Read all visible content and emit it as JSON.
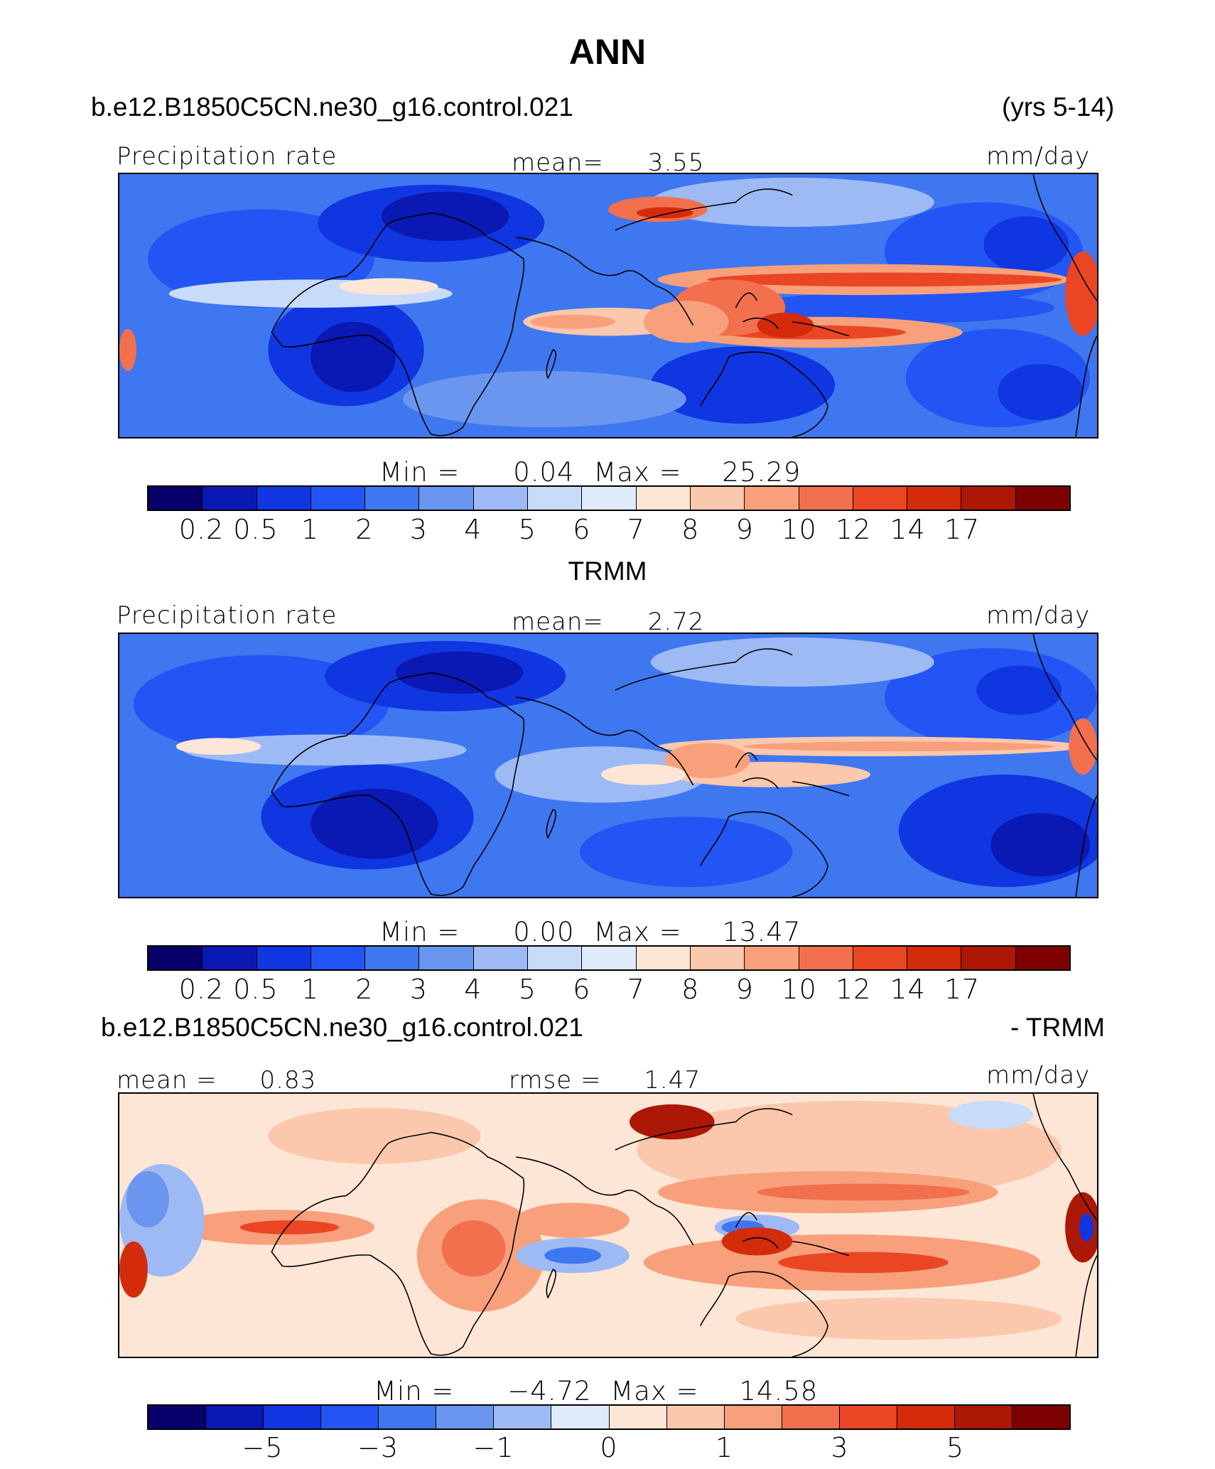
{
  "title": "ANN",
  "case_name": "b.e12.B1850C5CN.ne30_g16.control.021",
  "years": "(yrs 5-14)",
  "colors": {
    "levels": [
      "#08006b",
      "#0a18b4",
      "#0f36e0",
      "#2255f3",
      "#3f77f0",
      "#6a96ef",
      "#9dbaf4",
      "#c8dcfa",
      "#dfeafb",
      "#fde6d6",
      "#fbc8ad",
      "#f8a07c",
      "#f2704e",
      "#ea4623",
      "#d42c0b",
      "#ad1705",
      "#7f0000"
    ],
    "diff_levels": [
      "#08006b",
      "#0a18b4",
      "#0f36e0",
      "#2255f3",
      "#3f77f0",
      "#6a96ef",
      "#9dbaf4",
      "#dfeafb",
      "#fde6d6",
      "#fbc8ad",
      "#f8a07c",
      "#f2704e",
      "#ea4623",
      "#d42c0b",
      "#ad1705",
      "#7f0000"
    ],
    "coast": "#000000"
  },
  "panels": [
    {
      "heading": "",
      "left_label": "Precipitation rate",
      "center_label": "mean=",
      "center_value": "3.55",
      "units": "mm/day",
      "min_label": "Min  =",
      "min_value": "0.04",
      "max_label": "Max  =",
      "max_value": "25.29",
      "colorbar_ticks": [
        "0.2",
        "0.5",
        "1",
        "2",
        "3",
        "4",
        "5",
        "6",
        "7",
        "8",
        "9",
        "10",
        "12",
        "14",
        "17"
      ]
    },
    {
      "heading": "TRMM",
      "left_label": "Precipitation rate",
      "center_label": "mean=",
      "center_value": "2.72",
      "units": "mm/day",
      "min_label": "Min  =",
      "min_value": "0.00",
      "max_label": "Max  =",
      "max_value": "13.47",
      "colorbar_ticks": [
        "0.2",
        "0.5",
        "1",
        "2",
        "3",
        "4",
        "5",
        "6",
        "7",
        "8",
        "9",
        "10",
        "12",
        "14",
        "17"
      ]
    },
    {
      "heading_left": "b.e12.B1850C5CN.ne30_g16.control.021",
      "heading_right": "- TRMM",
      "left_label": "mean  =",
      "left_value": "0.83",
      "center_label": "rmse  =",
      "center_value": "1.47",
      "units": "mm/day",
      "min_label": "Min  =",
      "min_value": "−4.72",
      "max_label": "Max  =",
      "max_value": "14.58",
      "colorbar_ticks": [
        "−5",
        "−3",
        "−1",
        "0",
        "1",
        "3",
        "5"
      ]
    }
  ]
}
